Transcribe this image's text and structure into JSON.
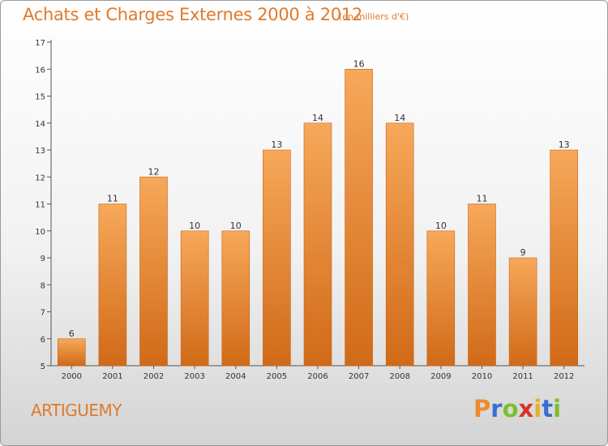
{
  "header": {
    "title": "Achats et Charges Externes 2000 à 2012",
    "subtitle": "(en milliers d'€)"
  },
  "footer": {
    "commune": "ARTIGUEMY",
    "logo_text": "Proxiti",
    "logo_letter_colors": [
      "#ef8a2b",
      "#3a6fd0",
      "#7bbf2e",
      "#d8322a",
      "#e2b227",
      "#3a6fd0",
      "#7bbf2e"
    ]
  },
  "colors": {
    "bar_top": "#f7a85a",
    "bar_bottom": "#d06a18",
    "bar_stroke": "#c96515",
    "text": "#333333",
    "accent": "#e07a2a"
  },
  "chart_data": {
    "type": "bar",
    "title": "Achats et Charges Externes 2000 à 2012",
    "subtitle": "(en milliers d'€)",
    "categories": [
      "2000",
      "2001",
      "2002",
      "2003",
      "2004",
      "2005",
      "2006",
      "2007",
      "2008",
      "2009",
      "2010",
      "2011",
      "2012"
    ],
    "values": [
      6,
      11,
      12,
      10,
      10,
      13,
      14,
      16,
      14,
      10,
      11,
      9,
      13
    ],
    "ylim": [
      5,
      17
    ],
    "yticks": [
      5,
      6,
      7,
      8,
      9,
      10,
      11,
      12,
      13,
      14,
      15,
      16,
      17
    ],
    "grid": false,
    "xlabel": "",
    "ylabel": ""
  }
}
